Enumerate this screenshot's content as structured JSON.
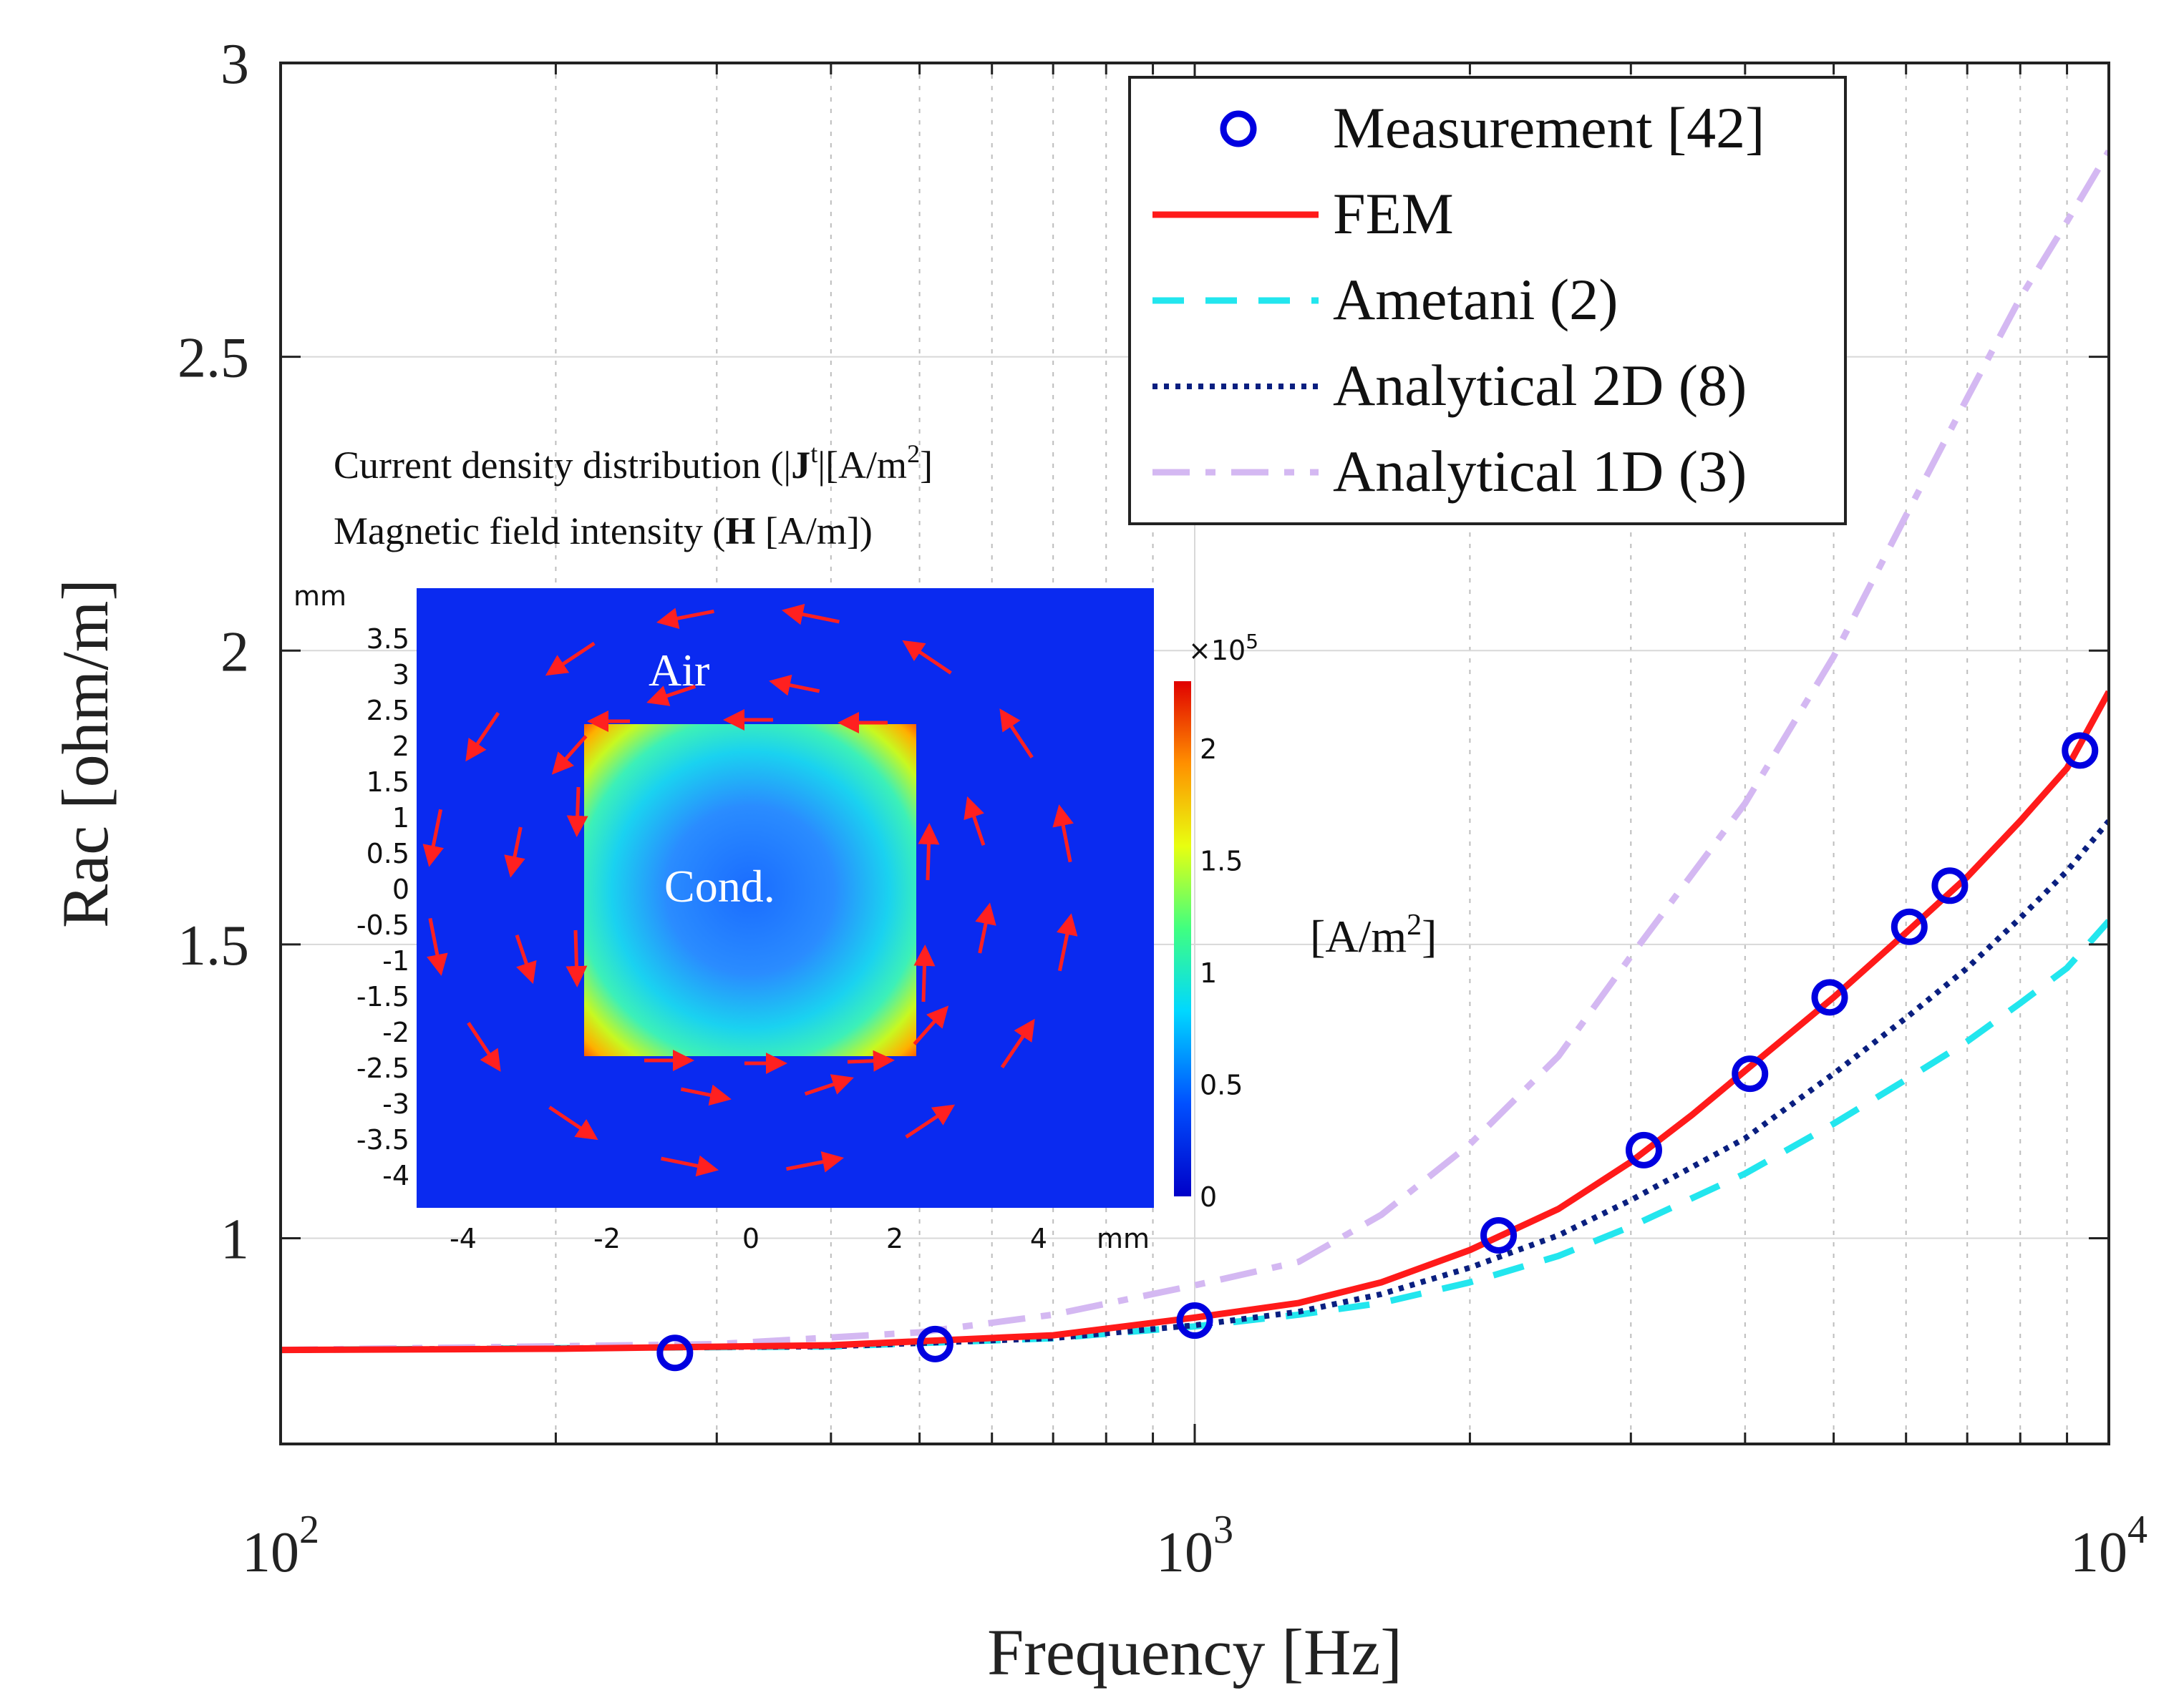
{
  "chart_data": {
    "type": "line",
    "title": "",
    "xlabel": "Frequency [Hz]",
    "ylabel": "Rac [ohm/m]",
    "xscale": "log",
    "xlim": [
      100,
      10000
    ],
    "ylim": [
      0.65,
      3.0
    ],
    "grid": true,
    "legend_position": "top-right",
    "x_ticks": [
      {
        "value": 100,
        "base": "10",
        "exp": "2"
      },
      {
        "value": 1000,
        "base": "10",
        "exp": "3"
      },
      {
        "value": 10000,
        "base": "10",
        "exp": "4"
      }
    ],
    "y_ticks": [
      {
        "value": 1,
        "label": "1"
      },
      {
        "value": 1.5,
        "label": "1.5"
      },
      {
        "value": 2,
        "label": "2"
      },
      {
        "value": 2.5,
        "label": "2.5"
      },
      {
        "value": 3,
        "label": "3"
      }
    ],
    "series": [
      {
        "name": "Measurement [42]",
        "style": "markers",
        "color": "#0000e0",
        "points": [
          [
            270,
            0.805
          ],
          [
            520,
            0.82
          ],
          [
            1000,
            0.86
          ],
          [
            2150,
            1.005
          ],
          [
            3100,
            1.15
          ],
          [
            4050,
            1.28
          ],
          [
            4950,
            1.41
          ],
          [
            6050,
            1.53
          ],
          [
            6700,
            1.6
          ],
          [
            9300,
            1.83
          ]
        ]
      },
      {
        "name": "FEM",
        "style": "solid",
        "color": "#ff1a1a",
        "points": [
          [
            100,
            0.81
          ],
          [
            200,
            0.812
          ],
          [
            400,
            0.818
          ],
          [
            700,
            0.835
          ],
          [
            1000,
            0.865
          ],
          [
            1300,
            0.89
          ],
          [
            1600,
            0.925
          ],
          [
            2000,
            0.98
          ],
          [
            2500,
            1.05
          ],
          [
            3000,
            1.13
          ],
          [
            3500,
            1.21
          ],
          [
            4000,
            1.285
          ],
          [
            5000,
            1.41
          ],
          [
            6000,
            1.52
          ],
          [
            7000,
            1.615
          ],
          [
            8000,
            1.71
          ],
          [
            9000,
            1.8
          ],
          [
            10000,
            1.93
          ]
        ]
      },
      {
        "name": "Ametani (2)",
        "style": "dashed",
        "color": "#22e6ee",
        "points": [
          [
            100,
            0.81
          ],
          [
            400,
            0.816
          ],
          [
            700,
            0.83
          ],
          [
            1000,
            0.85
          ],
          [
            1300,
            0.87
          ],
          [
            1600,
            0.89
          ],
          [
            2000,
            0.925
          ],
          [
            2500,
            0.97
          ],
          [
            3000,
            1.02
          ],
          [
            4000,
            1.11
          ],
          [
            5000,
            1.195
          ],
          [
            6000,
            1.27
          ],
          [
            7000,
            1.335
          ],
          [
            8000,
            1.4
          ],
          [
            9000,
            1.46
          ],
          [
            10000,
            1.54
          ]
        ]
      },
      {
        "name": "Analytical 2D (8)",
        "style": "dotted",
        "color": "#0a1f80",
        "points": [
          [
            100,
            0.81
          ],
          [
            400,
            0.816
          ],
          [
            700,
            0.83
          ],
          [
            1000,
            0.852
          ],
          [
            1300,
            0.875
          ],
          [
            1600,
            0.905
          ],
          [
            2000,
            0.95
          ],
          [
            2500,
            1.005
          ],
          [
            3000,
            1.065
          ],
          [
            4000,
            1.17
          ],
          [
            5000,
            1.28
          ],
          [
            6000,
            1.375
          ],
          [
            7000,
            1.46
          ],
          [
            8000,
            1.545
          ],
          [
            9000,
            1.625
          ],
          [
            10000,
            1.71
          ]
        ]
      },
      {
        "name": "Analytical 1D (3)",
        "style": "dashdot",
        "color": "#d4b8f2",
        "points": [
          [
            100,
            0.81
          ],
          [
            300,
            0.82
          ],
          [
            500,
            0.84
          ],
          [
            700,
            0.87
          ],
          [
            1000,
            0.92
          ],
          [
            1300,
            0.96
          ],
          [
            1600,
            1.04
          ],
          [
            2000,
            1.16
          ],
          [
            2500,
            1.31
          ],
          [
            3000,
            1.48
          ],
          [
            4000,
            1.74
          ],
          [
            5000,
            1.99
          ],
          [
            6000,
            2.23
          ],
          [
            7000,
            2.43
          ],
          [
            8000,
            2.6
          ],
          [
            9000,
            2.73
          ],
          [
            10000,
            2.85
          ]
        ]
      }
    ],
    "inset": {
      "caption_line1": {
        "prefix": "Current density distribution (|",
        "bold": "J",
        "sup": "t",
        "suffix": "|[A/m",
        "sup2": "2",
        "end": "]"
      },
      "caption_line2": {
        "prefix": "Magnetic field intensity (",
        "bold": "H",
        "suffix": " [A/m])"
      },
      "label_air": "Air",
      "label_conductor": "Cond.",
      "unit_label": {
        "text": "[A/m",
        "sup": "2",
        "end": "]"
      },
      "axis_unit": "mm",
      "x_ticks": [
        "-4",
        "-2",
        "0",
        "2",
        "4"
      ],
      "y_ticks": [
        "3.5",
        "3",
        "2.5",
        "2",
        "1.5",
        "1",
        "0.5",
        "0",
        "-0.5",
        "-1",
        "-1.5",
        "-2",
        "-2.5",
        "-3",
        "-3.5",
        "-4"
      ],
      "colorbar_ticks": [
        "2",
        "1.5",
        "1",
        "0.5",
        "0"
      ],
      "colorbar_range": [
        0,
        2.3
      ],
      "colorbar_exponent": {
        "base": "×10",
        "exp": "5"
      }
    }
  }
}
